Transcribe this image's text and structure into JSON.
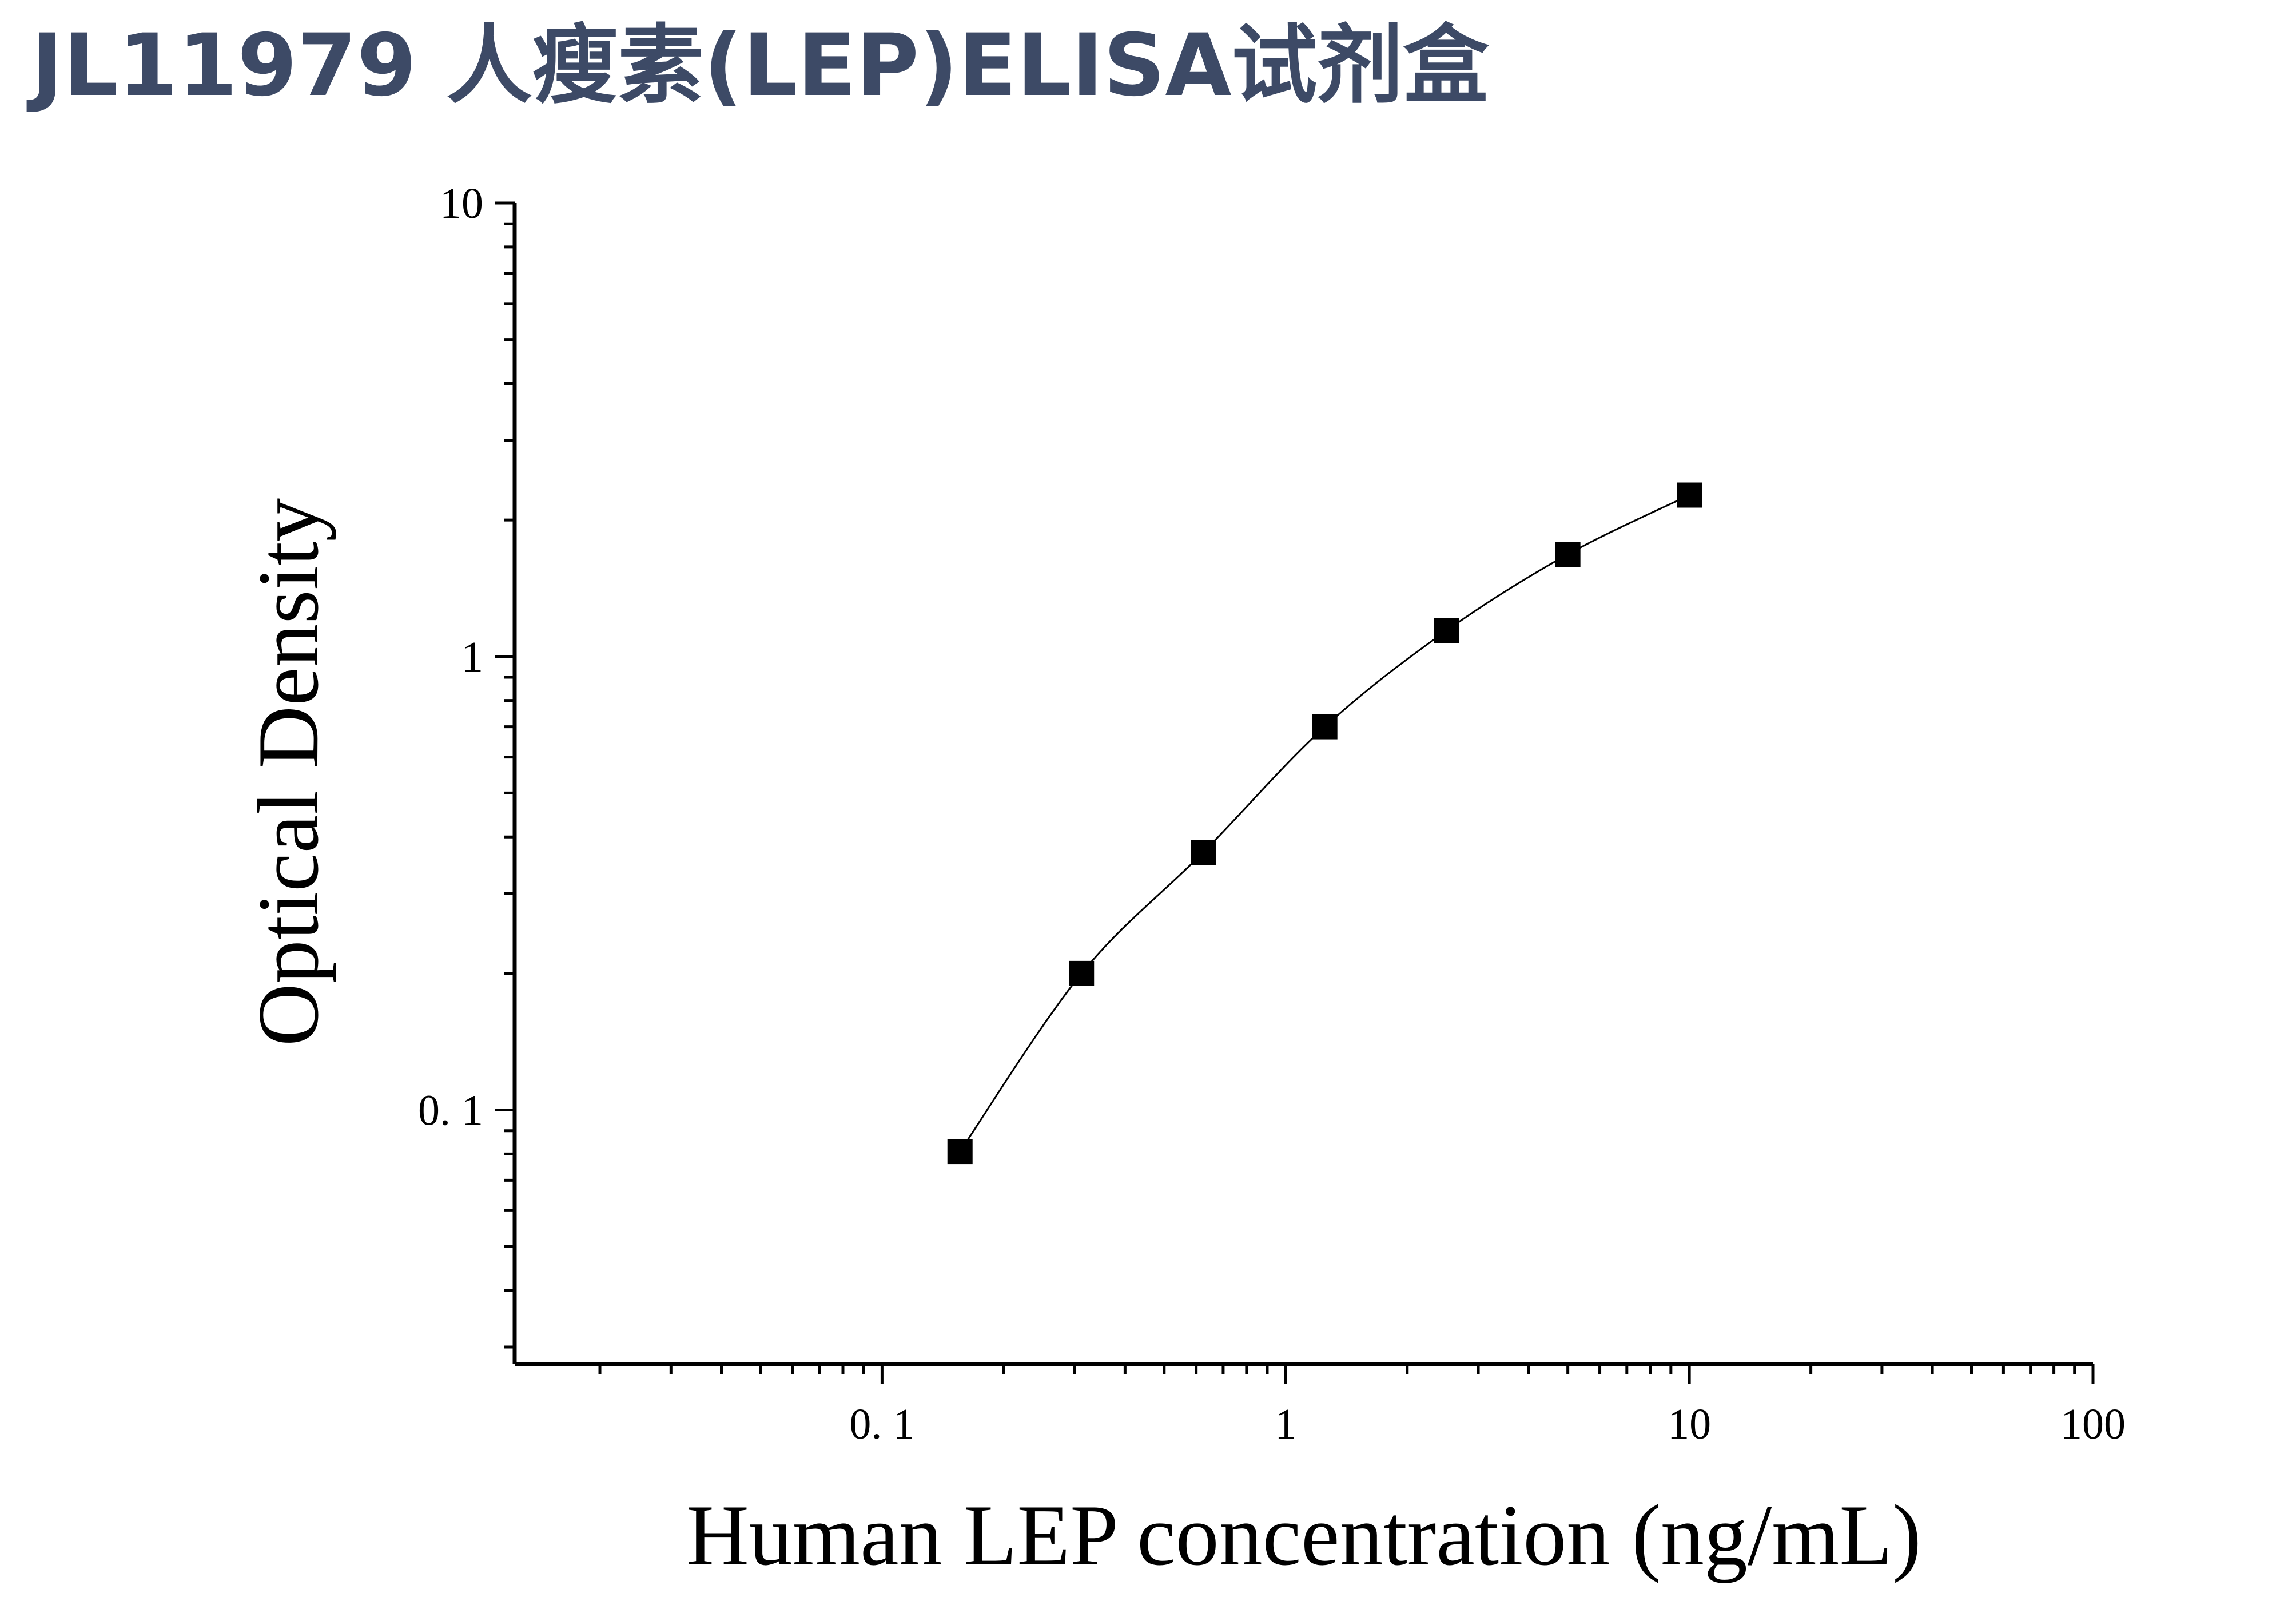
{
  "page_title": "JL11979 人瘦素(LEP)ELISA试剂盒",
  "chart_data": {
    "type": "scatter",
    "title": "",
    "xlabel": "Human LEP concentration (ng/mL)",
    "ylabel": "Optical Density",
    "xscale": "log",
    "yscale": "log",
    "xlim": [
      0.0123,
      100
    ],
    "ylim": [
      0.0275,
      10
    ],
    "x_ticks": [
      {
        "value": 0.1,
        "label": "0. 1"
      },
      {
        "value": 1,
        "label": "1"
      },
      {
        "value": 10,
        "label": "10"
      },
      {
        "value": 100,
        "label": "100"
      }
    ],
    "y_ticks": [
      {
        "value": 0.1,
        "label": "0. 1"
      },
      {
        "value": 1,
        "label": "1"
      },
      {
        "value": 10,
        "label": "10"
      }
    ],
    "series": [
      {
        "marker": "square",
        "color": "#000000",
        "fit_line": true,
        "x": [
          0.156,
          0.312,
          0.625,
          1.25,
          2.5,
          5,
          10
        ],
        "y": [
          0.081,
          0.2,
          0.37,
          0.7,
          1.14,
          1.68,
          2.27
        ]
      }
    ],
    "grid": false,
    "legend": "none"
  }
}
